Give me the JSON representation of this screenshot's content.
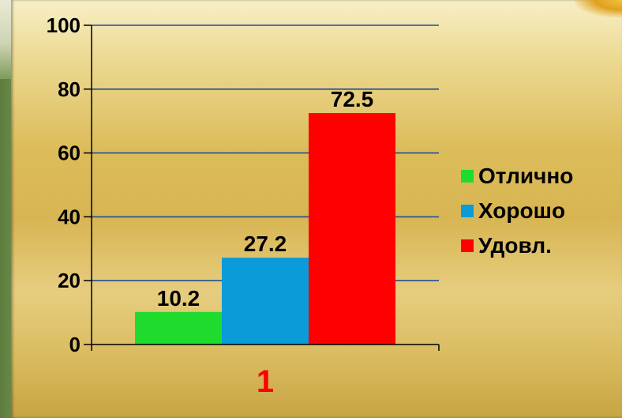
{
  "chart_data": {
    "type": "bar",
    "categories": [
      "1"
    ],
    "series": [
      {
        "name": "Отлично",
        "values": [
          10.2
        ],
        "color": "#1fdb2e"
      },
      {
        "name": "Хорошо",
        "values": [
          27.2
        ],
        "color": "#0a9bd8"
      },
      {
        "name": "Удовл.",
        "values": [
          72.5
        ],
        "color": "#ff0000"
      }
    ],
    "data_labels": [
      "10.2",
      "27.2",
      "72.5"
    ],
    "ylim": [
      0,
      100
    ],
    "yticks": [
      "0",
      "20",
      "40",
      "60",
      "80",
      "100"
    ],
    "grid": true,
    "legend_position": "right",
    "category_label_color": "#ff0000",
    "gridline_color": "#1f4f8f"
  }
}
